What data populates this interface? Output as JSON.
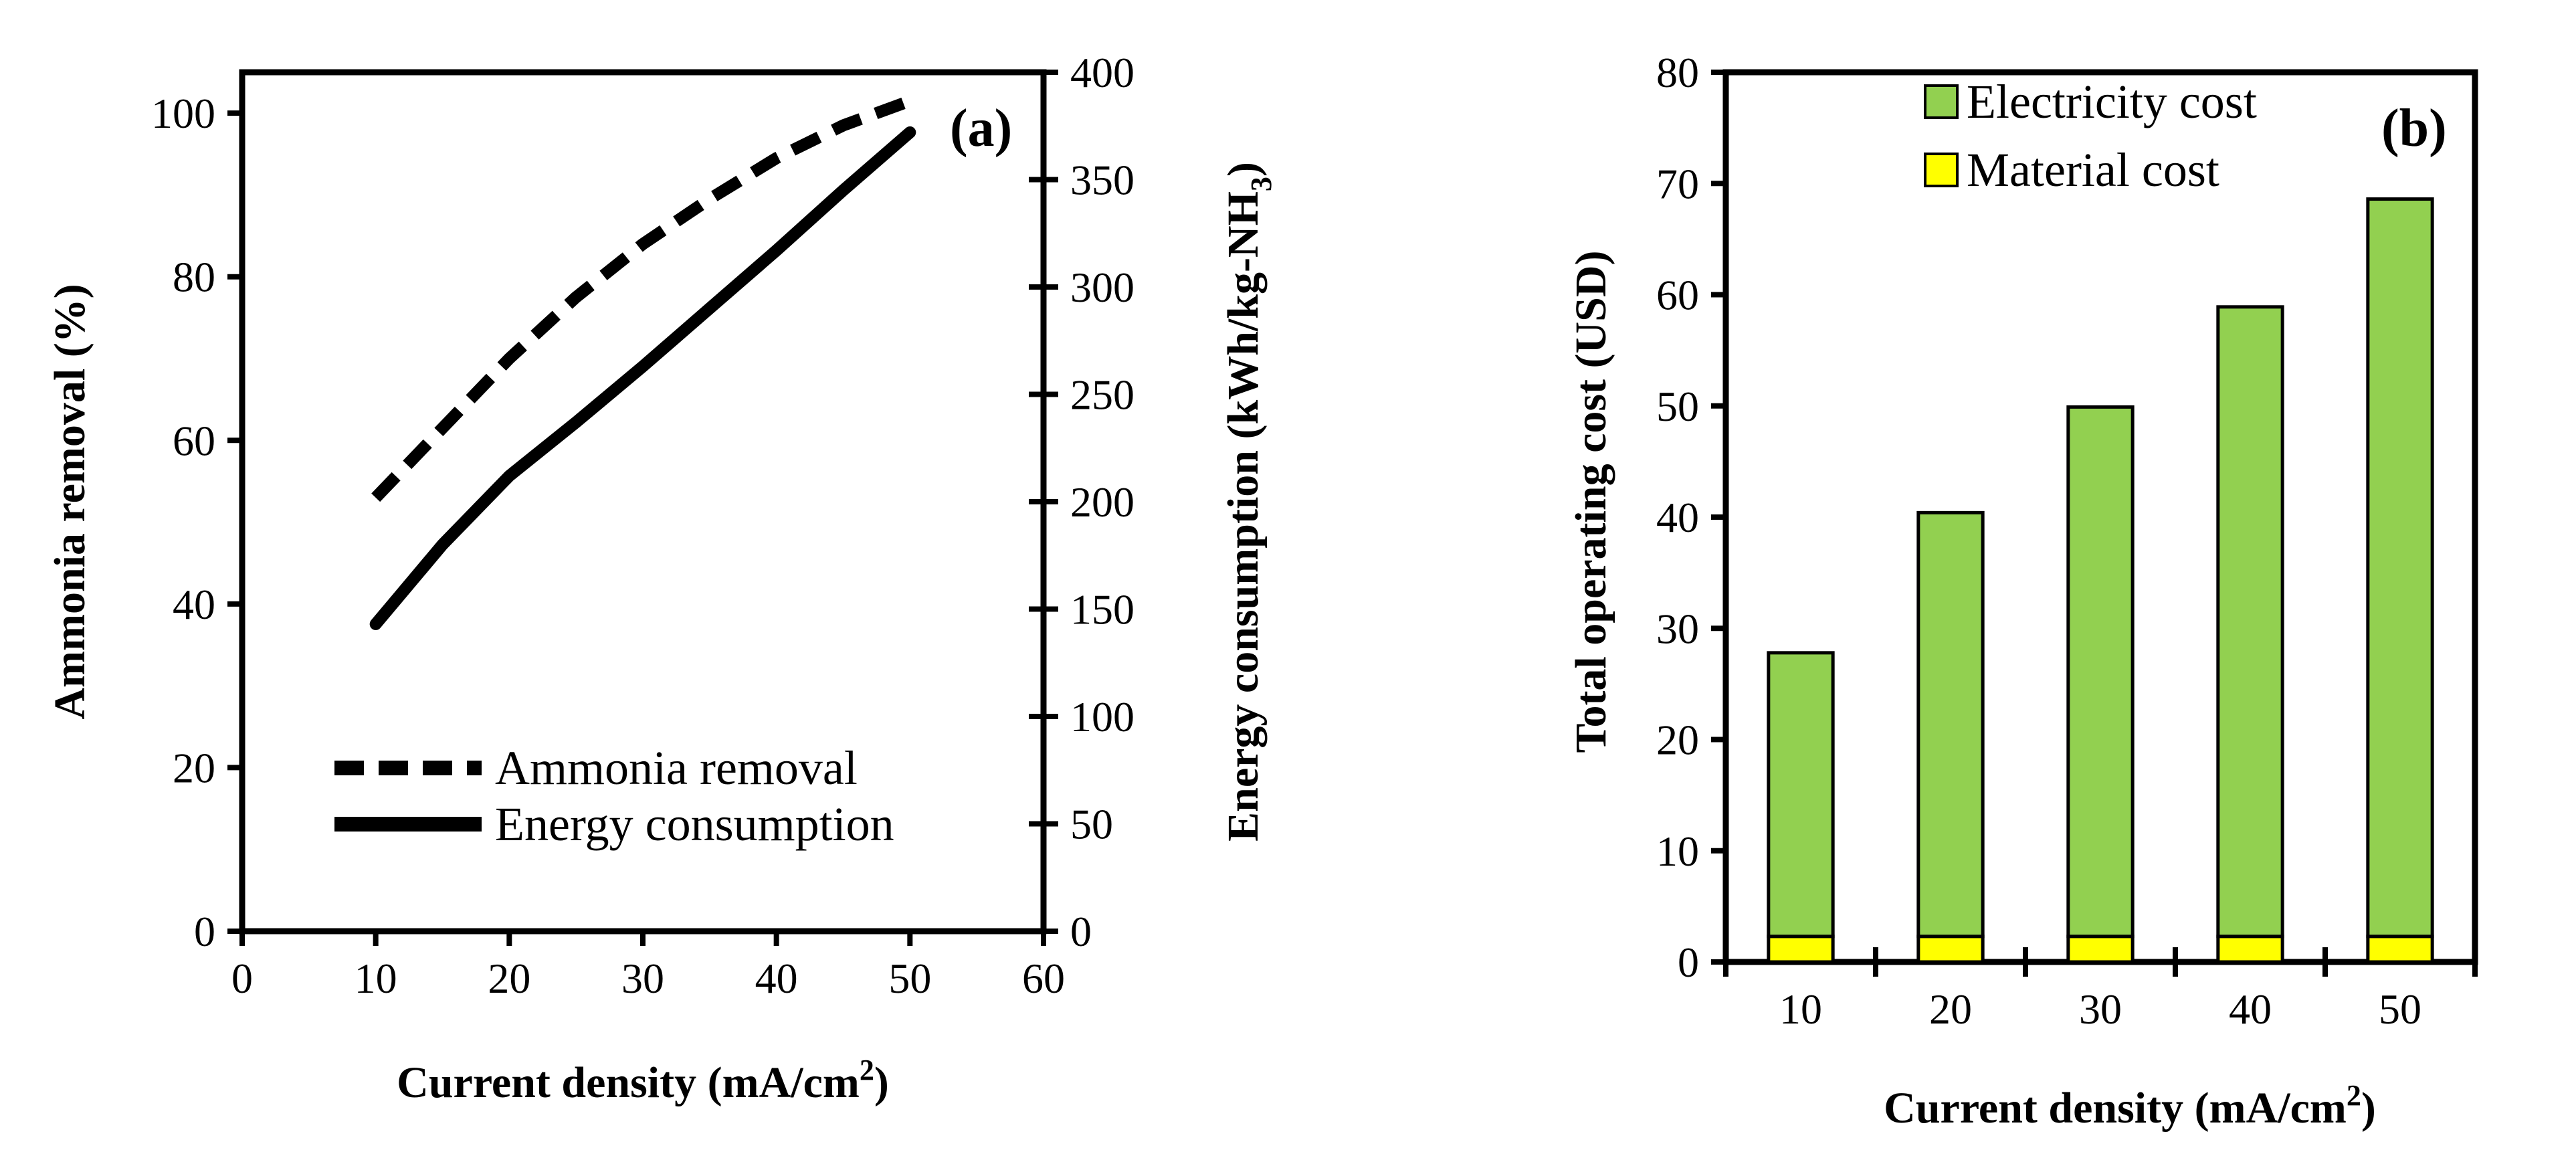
{
  "colors": {
    "electricity": "#92d050",
    "material": "#ffff00",
    "line": "#000000"
  },
  "chart_data": [
    {
      "type": "line",
      "panel_label": "(a)",
      "xlabel": "Current density (mA/cm",
      "xlabel_sup": "2",
      "xlabel_end": ")",
      "ylabel": "Ammonia removal (%)",
      "y2label": "Energy consumption (kWh/kg-NH",
      "y2label_sub": "3",
      "y2label_end": ")",
      "xlim": [
        0,
        60
      ],
      "ylim": [
        0,
        105
      ],
      "y2lim": [
        0,
        400
      ],
      "xticks": [
        "0",
        "10",
        "20",
        "30",
        "40",
        "50",
        "60"
      ],
      "yticks": [
        "0",
        "20",
        "40",
        "60",
        "80",
        "100"
      ],
      "y2ticks": [
        "0",
        "50",
        "100",
        "150",
        "200",
        "250",
        "300",
        "350",
        "400"
      ],
      "series": [
        {
          "name": "Ammonia removal",
          "axis": "left",
          "style": "dashed",
          "x": [
            10,
            15,
            20,
            25,
            30,
            35,
            40,
            45,
            50
          ],
          "y": [
            53,
            61.5,
            70,
            77.5,
            84,
            89.5,
            94.5,
            98.5,
            101.5
          ]
        },
        {
          "name": "Energy consumption",
          "axis": "right",
          "style": "solid",
          "x": [
            10,
            15,
            20,
            25,
            30,
            35,
            40,
            45,
            50
          ],
          "y": [
            143,
            180,
            212,
            237,
            263,
            290,
            317,
            345,
            372
          ]
        }
      ]
    },
    {
      "type": "bar",
      "stacked": true,
      "panel_label": "(b)",
      "xlabel": "Current density (mA/cm",
      "xlabel_sup": "2",
      "xlabel_end": ")",
      "ylabel": "Total operating cost (USD)",
      "categories": [
        "10",
        "20",
        "30",
        "40",
        "50"
      ],
      "ylim": [
        0,
        80
      ],
      "yticks": [
        "0",
        "10",
        "20",
        "30",
        "40",
        "50",
        "60",
        "70",
        "80"
      ],
      "series": [
        {
          "name": "Material cost",
          "values": [
            2.3,
            2.3,
            2.3,
            2.3,
            2.3
          ]
        },
        {
          "name": "Electricity cost",
          "values": [
            25.5,
            38.1,
            47.6,
            56.6,
            66.3
          ]
        }
      ],
      "legend": [
        "Electricity cost",
        "Material cost"
      ]
    }
  ]
}
